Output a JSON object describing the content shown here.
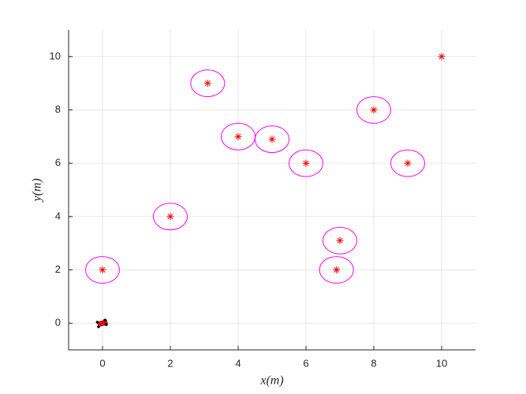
{
  "chart_data": {
    "type": "scatter",
    "xlabel": "x(m)",
    "ylabel": "y(m)",
    "xlim": [
      -1,
      11
    ],
    "ylim": [
      -1,
      11
    ],
    "xticks": [
      0,
      2,
      4,
      6,
      8,
      10
    ],
    "yticks": [
      0,
      2,
      4,
      6,
      8,
      10
    ],
    "grid": true,
    "series": [
      {
        "color": "#ff0000",
        "marker": "*",
        "x": [
          0,
          2,
          3.1,
          4,
          5,
          6,
          7,
          6.9,
          8,
          9,
          10
        ],
        "y": [
          2,
          4,
          9,
          7,
          6.9,
          6,
          3.1,
          2,
          8,
          6,
          10
        ]
      }
    ],
    "circles": {
      "color": "#ff00ff",
      "radius": 0.5,
      "x": [
        0,
        2,
        3.1,
        4,
        5,
        6,
        7,
        6.9,
        8,
        9
      ],
      "y": [
        2,
        4,
        9,
        7,
        6.9,
        6,
        3.1,
        2,
        8,
        6
      ]
    },
    "robot": {
      "color": "#ff0000",
      "x": 0,
      "y": 0
    }
  }
}
